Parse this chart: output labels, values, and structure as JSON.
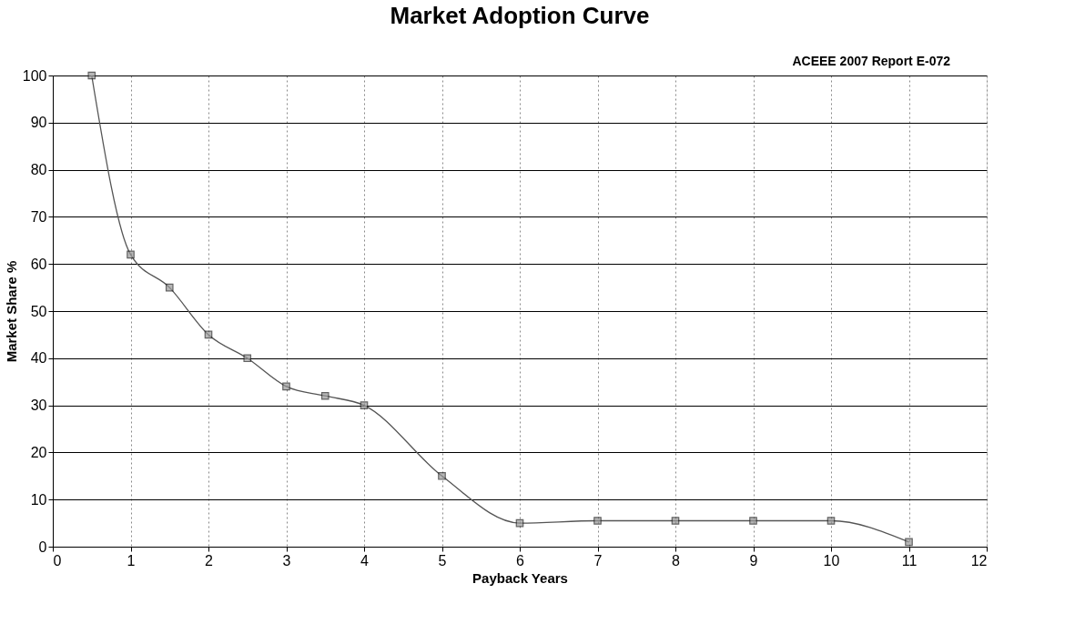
{
  "chart_data": {
    "type": "line",
    "title": "Market Adoption Curve",
    "xlabel": "Payback Years",
    "ylabel": "Market Share %",
    "annotations": [
      "ACEEE 2007 Report E-072"
    ],
    "x": [
      0.5,
      1,
      1.5,
      2,
      2.5,
      3,
      3.5,
      4,
      5,
      6,
      7,
      8,
      9,
      10,
      11
    ],
    "series": [
      {
        "color": "#555555",
        "values": [
          100,
          62,
          55,
          45,
          40,
          34,
          32,
          30,
          15,
          5,
          5.5,
          5.5,
          5.5,
          5.5,
          1
        ]
      }
    ],
    "xlim": [
      0,
      12
    ],
    "xticks": [
      0,
      1,
      2,
      3,
      4,
      5,
      6,
      7,
      8,
      9,
      10,
      11,
      12
    ],
    "ylim": [
      0,
      100
    ],
    "yticks": [
      0,
      10,
      20,
      30,
      40,
      50,
      60,
      70,
      80,
      90,
      100
    ],
    "grid": true,
    "marker": "square",
    "line_style": "solid"
  }
}
